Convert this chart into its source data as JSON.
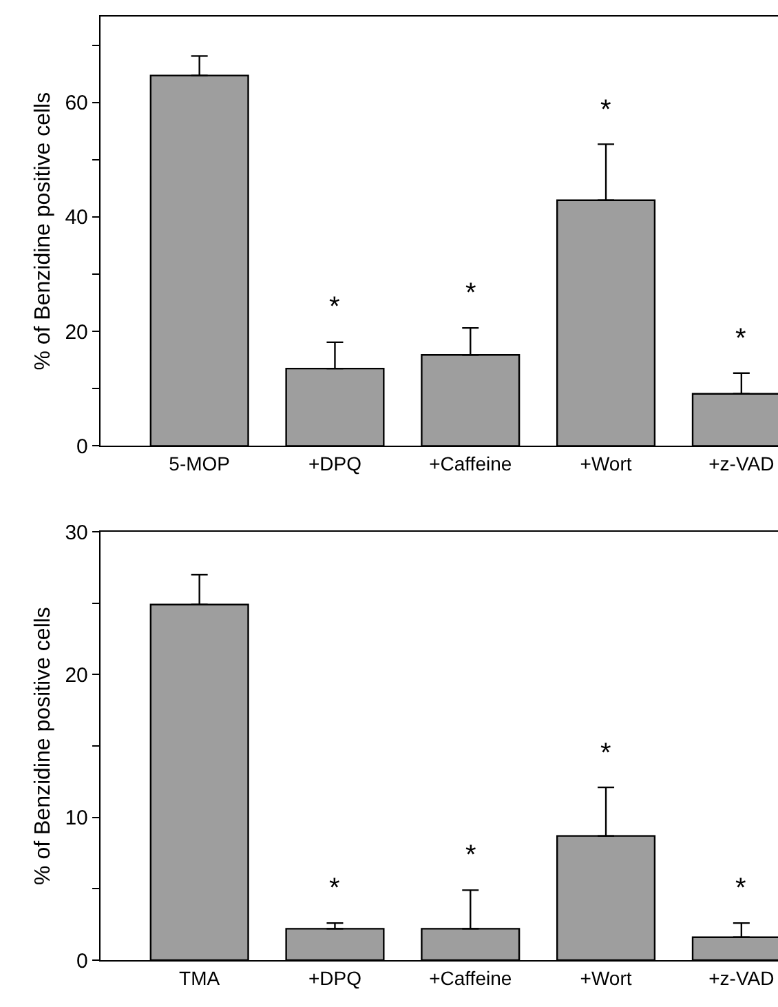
{
  "chart_data": [
    {
      "type": "bar",
      "ylabel": "% of Benzidine positive cells",
      "categories": [
        "5-MOP",
        "+DPQ",
        "+Caffeine",
        "+Wort",
        "+z-VAD"
      ],
      "values": [
        64.7,
        13.5,
        15.9,
        42.9,
        9.1
      ],
      "errors": [
        [
          64.7,
          68.1
        ],
        [
          13.5,
          18.1
        ],
        [
          15.9,
          20.6
        ],
        [
          42.9,
          52.7
        ],
        [
          9.1,
          12.7
        ]
      ],
      "color": "#9e9e9e",
      "ylim": [
        0,
        75
      ],
      "yticks": [
        0,
        {
          "value": 10,
          "label": null
        },
        20,
        {
          "value": 30,
          "label": null
        },
        40,
        {
          "value": 50,
          "label": null
        },
        60,
        {
          "value": 70,
          "label": null
        }
      ],
      "annotations": [
        "*",
        "*",
        "*",
        "*"
      ]
    },
    {
      "type": "bar",
      "ylabel": "% of Benzidine positive cells",
      "categories": [
        "TMA",
        "+DPQ",
        "+Caffeine",
        "+Wort",
        "+z-VAD"
      ],
      "values": [
        24.9,
        2.2,
        2.2,
        8.7,
        1.6
      ],
      "errors": [
        [
          24.9,
          27.0
        ],
        [
          2.2,
          2.6
        ],
        [
          2.2,
          4.9
        ],
        [
          8.7,
          12.1
        ],
        [
          1.6,
          2.6
        ]
      ],
      "color": "#9e9e9e",
      "ylim": [
        0,
        30
      ],
      "yticks": [
        0,
        {
          "value": 5,
          "label": null
        },
        10,
        {
          "value": 15,
          "label": null
        },
        20,
        {
          "value": 25,
          "label": null
        },
        30
      ],
      "annotations": [
        "*",
        "*",
        "*",
        "*"
      ]
    }
  ]
}
